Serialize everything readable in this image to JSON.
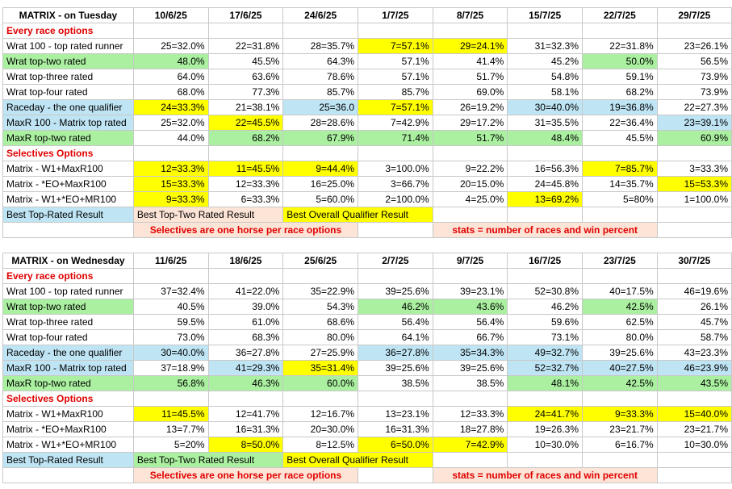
{
  "tables": [
    {
      "title": "MATRIX - on Tuesday",
      "dates": [
        "10/6/25",
        "17/6/25",
        "24/6/25",
        "1/7/25",
        "8/7/25",
        "15/7/25",
        "22/7/25",
        "29/7/25"
      ],
      "section1": "Every race options",
      "rows1": [
        {
          "label": "Wrat 100 - top rated runner",
          "label_bg": "",
          "cells": [
            {
              "v": "25=32.0%",
              "bg": ""
            },
            {
              "v": "22=31.8%",
              "bg": ""
            },
            {
              "v": "28=35.7%",
              "bg": ""
            },
            {
              "v": "7=57.1%",
              "bg": "#ffff00"
            },
            {
              "v": "29=24.1%",
              "bg": "#ffff00"
            },
            {
              "v": "31=32.3%",
              "bg": ""
            },
            {
              "v": "22=31.8%",
              "bg": ""
            },
            {
              "v": "23=26.1%",
              "bg": ""
            }
          ]
        },
        {
          "label": "Wrat top-two rated",
          "label_bg": "#aaf0a0",
          "cells": [
            {
              "v": "48.0%",
              "bg": "#aaf0a0"
            },
            {
              "v": "45.5%",
              "bg": ""
            },
            {
              "v": "64.3%",
              "bg": ""
            },
            {
              "v": "57.1%",
              "bg": ""
            },
            {
              "v": "41.4%",
              "bg": ""
            },
            {
              "v": "45.2%",
              "bg": ""
            },
            {
              "v": "50.0%",
              "bg": "#aaf0a0"
            },
            {
              "v": "56.5%",
              "bg": ""
            }
          ]
        },
        {
          "label": "Wrat top-three rated",
          "label_bg": "",
          "cells": [
            {
              "v": "64.0%",
              "bg": ""
            },
            {
              "v": "63.6%",
              "bg": ""
            },
            {
              "v": "78.6%",
              "bg": ""
            },
            {
              "v": "57.1%",
              "bg": ""
            },
            {
              "v": "51.7%",
              "bg": ""
            },
            {
              "v": "54.8%",
              "bg": ""
            },
            {
              "v": "59.1%",
              "bg": ""
            },
            {
              "v": "73.9%",
              "bg": ""
            }
          ]
        },
        {
          "label": "Wrat top-four rated",
          "label_bg": "",
          "cells": [
            {
              "v": "68.0%",
              "bg": ""
            },
            {
              "v": "77.3%",
              "bg": ""
            },
            {
              "v": "85.7%",
              "bg": ""
            },
            {
              "v": "85.7%",
              "bg": ""
            },
            {
              "v": "69.0%",
              "bg": ""
            },
            {
              "v": "58.1%",
              "bg": ""
            },
            {
              "v": "68.2%",
              "bg": ""
            },
            {
              "v": "73.9%",
              "bg": ""
            }
          ]
        },
        {
          "label": "Raceday - the one qualifier",
          "label_bg": "#bfe4f4",
          "cells": [
            {
              "v": "24=33.3%",
              "bg": "#ffff00"
            },
            {
              "v": "21=38.1%",
              "bg": ""
            },
            {
              "v": "25=36.0",
              "bg": "#bfe4f4"
            },
            {
              "v": "7=57.1%",
              "bg": "#ffff00"
            },
            {
              "v": "26=19.2%",
              "bg": ""
            },
            {
              "v": "30=40.0%",
              "bg": "#bfe4f4"
            },
            {
              "v": "19=36.8%",
              "bg": "#bfe4f4"
            },
            {
              "v": "22=27.3%",
              "bg": ""
            }
          ]
        },
        {
          "label": "MaxR 100 - Matrix top rated",
          "label_bg": "#bfe4f4",
          "cells": [
            {
              "v": "25=32.0%",
              "bg": ""
            },
            {
              "v": "22=45.5%",
              "bg": "#ffff00"
            },
            {
              "v": "28=28.6%",
              "bg": ""
            },
            {
              "v": "7=42.9%",
              "bg": ""
            },
            {
              "v": "29=17.2%",
              "bg": ""
            },
            {
              "v": "31=35.5%",
              "bg": ""
            },
            {
              "v": "22=36.4%",
              "bg": ""
            },
            {
              "v": "23=39.1%",
              "bg": "#bfe4f4"
            }
          ]
        },
        {
          "label": "MaxR top-two rated",
          "label_bg": "#aaf0a0",
          "cells": [
            {
              "v": "44.0%",
              "bg": ""
            },
            {
              "v": "68.2%",
              "bg": "#aaf0a0"
            },
            {
              "v": "67.9%",
              "bg": "#aaf0a0"
            },
            {
              "v": "71.4%",
              "bg": "#aaf0a0"
            },
            {
              "v": "51.7%",
              "bg": "#aaf0a0"
            },
            {
              "v": "48.4%",
              "bg": "#aaf0a0"
            },
            {
              "v": "45.5%",
              "bg": ""
            },
            {
              "v": "60.9%",
              "bg": "#aaf0a0"
            }
          ]
        }
      ],
      "section2": "Selectives Options",
      "rows2": [
        {
          "label": "Matrix - W1+MaxR100",
          "label_bg": "",
          "cells": [
            {
              "v": "12=33.3%",
              "bg": "#ffff00"
            },
            {
              "v": "11=45.5%",
              "bg": "#ffff00"
            },
            {
              "v": "9=44.4%",
              "bg": "#ffff00"
            },
            {
              "v": "3=100.0%",
              "bg": ""
            },
            {
              "v": "9=22.2%",
              "bg": ""
            },
            {
              "v": "16=56.3%",
              "bg": ""
            },
            {
              "v": "7=85.7%",
              "bg": "#ffff00"
            },
            {
              "v": "3=33.3%",
              "bg": ""
            }
          ]
        },
        {
          "label": "Matrix - *EO+MaxR100",
          "label_bg": "",
          "cells": [
            {
              "v": "15=33.3%",
              "bg": "#ffff00"
            },
            {
              "v": "12=33.3%",
              "bg": ""
            },
            {
              "v": "16=25.0%",
              "bg": ""
            },
            {
              "v": "3=66.7%",
              "bg": ""
            },
            {
              "v": "20=15.0%",
              "bg": ""
            },
            {
              "v": "24=45.8%",
              "bg": ""
            },
            {
              "v": "14=35.7%",
              "bg": ""
            },
            {
              "v": "15=53.3%",
              "bg": "#ffff00"
            }
          ]
        },
        {
          "label": "Matrix - W1+*EO+MR100",
          "label_bg": "",
          "cells": [
            {
              "v": "9=33.3%",
              "bg": "#ffff00"
            },
            {
              "v": "6=33.3%",
              "bg": ""
            },
            {
              "v": "5=60.0%",
              "bg": ""
            },
            {
              "v": "2=100.0%",
              "bg": ""
            },
            {
              "v": "4=25.0%",
              "bg": ""
            },
            {
              "v": "13=69.2%",
              "bg": "#ffff00"
            },
            {
              "v": "5=80%",
              "bg": ""
            },
            {
              "v": "1=100.0%",
              "bg": ""
            }
          ]
        }
      ],
      "legend": {
        "best_top_rated": "Best Top-Rated Result",
        "best_top_two": "Best Top-Two Rated Result",
        "best_overall": "Best Overall Qualifier Result",
        "top_two_bg": "#fce4d6"
      },
      "notes": {
        "selectives": "Selectives are one horse per race options",
        "stats": "stats = number of races and win percent"
      }
    },
    {
      "title": "MATRIX - on Wednesday",
      "dates": [
        "11/6/25",
        "18/6/25",
        "25/6/25",
        "2/7/25",
        "9/7/25",
        "16/7/25",
        "23/7/25",
        "30/7/25"
      ],
      "section1": "Every race options",
      "rows1": [
        {
          "label": "Wrat 100 - top rated runner",
          "label_bg": "",
          "cells": [
            {
              "v": "37=32.4%",
              "bg": ""
            },
            {
              "v": "41=22.0%",
              "bg": ""
            },
            {
              "v": "35=22.9%",
              "bg": ""
            },
            {
              "v": "39=25.6%",
              "bg": ""
            },
            {
              "v": "39=23.1%",
              "bg": ""
            },
            {
              "v": "52=30.8%",
              "bg": ""
            },
            {
              "v": "40=17.5%",
              "bg": ""
            },
            {
              "v": "46=19.6%",
              "bg": ""
            }
          ]
        },
        {
          "label": "Wrat top-two rated",
          "label_bg": "#aaf0a0",
          "cells": [
            {
              "v": "40.5%",
              "bg": ""
            },
            {
              "v": "39.0%",
              "bg": ""
            },
            {
              "v": "54.3%",
              "bg": ""
            },
            {
              "v": "46.2%",
              "bg": "#aaf0a0"
            },
            {
              "v": "43.6%",
              "bg": "#aaf0a0"
            },
            {
              "v": "46.2%",
              "bg": ""
            },
            {
              "v": "42.5%",
              "bg": "#aaf0a0"
            },
            {
              "v": "26.1%",
              "bg": ""
            }
          ]
        },
        {
          "label": "Wrat top-three rated",
          "label_bg": "",
          "cells": [
            {
              "v": "59.5%",
              "bg": ""
            },
            {
              "v": "61.0%",
              "bg": ""
            },
            {
              "v": "68.6%",
              "bg": ""
            },
            {
              "v": "56.4%",
              "bg": ""
            },
            {
              "v": "56.4%",
              "bg": ""
            },
            {
              "v": "59.6%",
              "bg": ""
            },
            {
              "v": "62.5%",
              "bg": ""
            },
            {
              "v": "45.7%",
              "bg": ""
            }
          ]
        },
        {
          "label": "Wrat top-four rated",
          "label_bg": "",
          "cells": [
            {
              "v": "73.0%",
              "bg": ""
            },
            {
              "v": "68.3%",
              "bg": ""
            },
            {
              "v": "80.0%",
              "bg": ""
            },
            {
              "v": "64.1%",
              "bg": ""
            },
            {
              "v": "66.7%",
              "bg": ""
            },
            {
              "v": "73.1%",
              "bg": ""
            },
            {
              "v": "80.0%",
              "bg": ""
            },
            {
              "v": "58.7%",
              "bg": ""
            }
          ]
        },
        {
          "label": "Raceday - the one qualifier",
          "label_bg": "#bfe4f4",
          "cells": [
            {
              "v": "30=40.0%",
              "bg": "#bfe4f4"
            },
            {
              "v": "36=27.8%",
              "bg": ""
            },
            {
              "v": "27=25.9%",
              "bg": ""
            },
            {
              "v": "36=27.8%",
              "bg": "#bfe4f4"
            },
            {
              "v": "35=34.3%",
              "bg": "#bfe4f4"
            },
            {
              "v": "49=32.7%",
              "bg": "#bfe4f4"
            },
            {
              "v": "39=25.6%",
              "bg": ""
            },
            {
              "v": "43=23.3%",
              "bg": ""
            }
          ]
        },
        {
          "label": "MaxR 100 - Matrix top rated",
          "label_bg": "#bfe4f4",
          "cells": [
            {
              "v": "37=18.9%",
              "bg": ""
            },
            {
              "v": "41=29.3%",
              "bg": "#bfe4f4"
            },
            {
              "v": "35=31.4%",
              "bg": "#ffff00"
            },
            {
              "v": "39=25.6%",
              "bg": ""
            },
            {
              "v": "39=25.6%",
              "bg": ""
            },
            {
              "v": "52=32.7%",
              "bg": "#bfe4f4"
            },
            {
              "v": "40=27.5%",
              "bg": "#bfe4f4"
            },
            {
              "v": "46=23.9%",
              "bg": "#bfe4f4"
            }
          ]
        },
        {
          "label": "MaxR top-two rated",
          "label_bg": "#aaf0a0",
          "cells": [
            {
              "v": "56.8%",
              "bg": "#aaf0a0"
            },
            {
              "v": "46.3%",
              "bg": "#aaf0a0"
            },
            {
              "v": "60.0%",
              "bg": "#aaf0a0"
            },
            {
              "v": "38.5%",
              "bg": ""
            },
            {
              "v": "38.5%",
              "bg": ""
            },
            {
              "v": "48.1%",
              "bg": "#aaf0a0"
            },
            {
              "v": "42.5%",
              "bg": "#aaf0a0"
            },
            {
              "v": "43.5%",
              "bg": "#aaf0a0"
            }
          ]
        }
      ],
      "section2": "Selectives Options",
      "rows2": [
        {
          "label": "Matrix - W1+MaxR100",
          "label_bg": "",
          "cells": [
            {
              "v": "11=45.5%",
              "bg": "#ffff00"
            },
            {
              "v": "12=41.7%",
              "bg": ""
            },
            {
              "v": "12=16.7%",
              "bg": ""
            },
            {
              "v": "13=23.1%",
              "bg": ""
            },
            {
              "v": "12=33.3%",
              "bg": ""
            },
            {
              "v": "24=41.7%",
              "bg": "#ffff00"
            },
            {
              "v": "9=33.3%",
              "bg": "#ffff00"
            },
            {
              "v": "15=40.0%",
              "bg": "#ffff00"
            }
          ]
        },
        {
          "label": "Matrix - *EO+MaxR100",
          "label_bg": "",
          "cells": [
            {
              "v": "13=7.7%",
              "bg": ""
            },
            {
              "v": "16=31.3%",
              "bg": ""
            },
            {
              "v": "20=30.0%",
              "bg": ""
            },
            {
              "v": "16=31.3%",
              "bg": ""
            },
            {
              "v": "18=27.8%",
              "bg": ""
            },
            {
              "v": "19=26.3%",
              "bg": ""
            },
            {
              "v": "23=21.7%",
              "bg": ""
            },
            {
              "v": "23=21.7%",
              "bg": ""
            }
          ]
        },
        {
          "label": "Matrix - W1+*EO+MR100",
          "label_bg": "",
          "cells": [
            {
              "v": "5=20%",
              "bg": ""
            },
            {
              "v": "8=50.0%",
              "bg": "#ffff00"
            },
            {
              "v": "8=12.5%",
              "bg": ""
            },
            {
              "v": "6=50.0%",
              "bg": "#ffff00"
            },
            {
              "v": "7=42.9%",
              "bg": "#ffff00"
            },
            {
              "v": "10=30.0%",
              "bg": ""
            },
            {
              "v": "6=16.7%",
              "bg": ""
            },
            {
              "v": "10=30.0%",
              "bg": ""
            }
          ]
        }
      ],
      "legend": {
        "best_top_rated": "Best Top-Rated Result",
        "best_top_two": "Best Top-Two Rated Result",
        "best_overall": "Best Overall Qualifier Result",
        "top_two_bg": "#aaf0a0"
      },
      "notes": {
        "selectives": "Selectives are one horse per race options",
        "stats": "stats = number of races and win percent"
      }
    }
  ],
  "colors": {
    "yellow": "#ffff00",
    "blue": "#bfe4f4",
    "green": "#aaf0a0",
    "pink": "#fce4d6",
    "red_text": "#e00000"
  }
}
